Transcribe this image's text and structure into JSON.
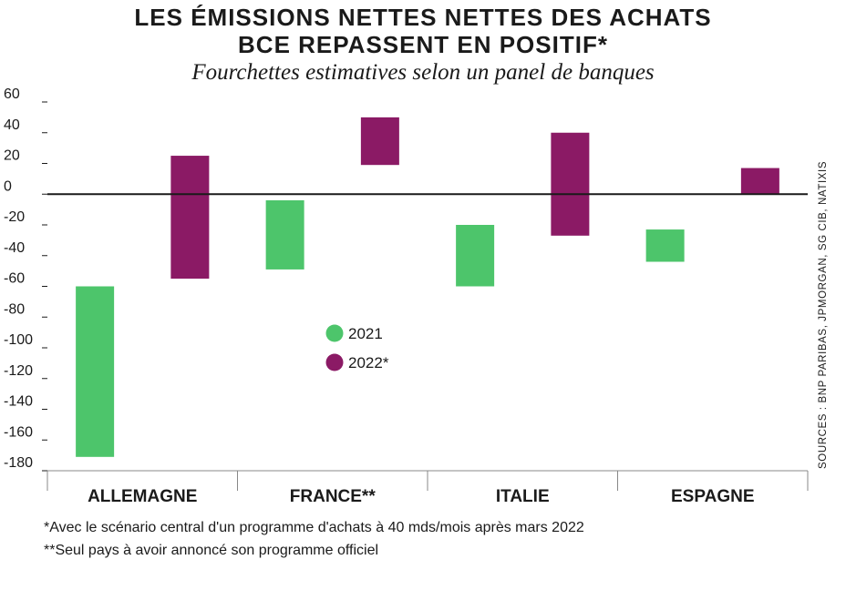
{
  "header": {
    "title_line1": "LES ÉMISSIONS NETTES NETTES DES ACHATS",
    "title_line2": "BCE REPASSENT EN POSITIF*",
    "subtitle": "Fourchettes estimatives selon un panel de banques"
  },
  "source": "SOURCES : BNP PARIBAS, JPMORGAN, SG CIB, NATIXIS",
  "footnotes": [
    "*Avec le scénario central d'un programme d'achats à 40 mds/mois après mars 2022",
    "**Seul pays à avoir annoncé son programme officiel"
  ],
  "colors": {
    "s2021": "#4dc56b",
    "s2022": "#8b1a65"
  },
  "chart_data": {
    "type": "bar",
    "subtype": "floating-range",
    "title": "LES ÉMISSIONS NETTES NETTES DES ACHATS BCE REPASSENT EN POSITIF*",
    "subtitle": "Fourchettes estimatives selon un panel de banques",
    "categories": [
      "ALLEMAGNE",
      "FRANCE**",
      "ITALIE",
      "ESPAGNE"
    ],
    "ylim": [
      -180,
      60
    ],
    "yticks": [
      60,
      40,
      20,
      0,
      -20,
      -40,
      -60,
      -80,
      -100,
      -120,
      -140,
      -160,
      -180
    ],
    "ytick_labels": [
      "60",
      "40",
      "20",
      "0",
      "-20",
      "-40",
      "-60",
      "-80",
      "-100",
      "-120",
      "-140",
      "-160",
      "-180"
    ],
    "grid": false,
    "legend_position": "center",
    "series": [
      {
        "name": "2021",
        "low": [
          -171,
          -49,
          -60,
          -44
        ],
        "high": [
          -60,
          -4,
          -20,
          -23
        ]
      },
      {
        "name": "2022*",
        "low": [
          -55,
          19,
          -27,
          0
        ],
        "high": [
          25,
          50,
          40,
          17
        ]
      }
    ]
  }
}
